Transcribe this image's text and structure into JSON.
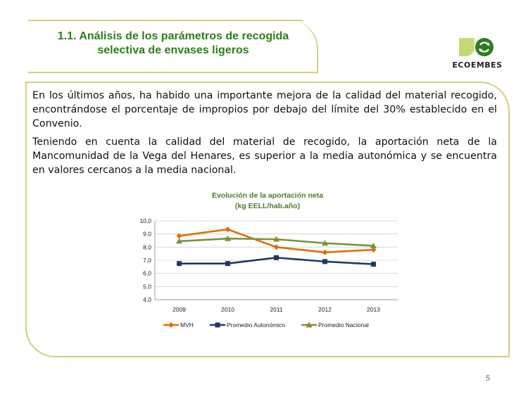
{
  "header": {
    "title_line1": "1.1. Análisis de los parámetros de recogida",
    "title_line2": "selectiva de envases ligeros"
  },
  "logo": {
    "text": "ECOEMBES",
    "icon": "recycle-icon"
  },
  "content": {
    "paragraph1": "En los últimos años, ha habido una importante mejora de la calidad del material recogido, encontrándose el porcentaje de impropios por debajo del límite del 30% establecido en el Convenio.",
    "paragraph2": "Teniendo en cuenta la calidad del material de recogido, la aportación neta de la Mancomunidad de la Vega del Henares, es superior a la media autonómica y se encuentra en valores cercanos a la media nacional."
  },
  "chart_data": {
    "type": "line",
    "title": "Evolución de la aportación neta",
    "subtitle": "(kg EELL/hab.año)",
    "categories": [
      "2009",
      "2010",
      "2011",
      "2012",
      "2013"
    ],
    "ylim": [
      4.0,
      10.0
    ],
    "yticks": [
      "4,0",
      "5,0",
      "6,0",
      "7,0",
      "8,0",
      "9,0",
      "10,0"
    ],
    "grid": true,
    "legend_position": "bottom",
    "series": [
      {
        "name": "MVH",
        "values": [
          8.85,
          9.35,
          8.0,
          7.6,
          7.8
        ],
        "color": "#e46c0a",
        "marker": "diamond"
      },
      {
        "name": "Promedio Autonómico",
        "values": [
          6.75,
          6.75,
          7.2,
          6.9,
          6.7
        ],
        "color": "#1f3a5f",
        "marker": "square"
      },
      {
        "name": "Promedio Nacional",
        "values": [
          8.45,
          8.65,
          8.6,
          8.3,
          8.1
        ],
        "color": "#77933c",
        "marker": "triangle"
      }
    ]
  },
  "footer": {
    "page_number": "5"
  }
}
